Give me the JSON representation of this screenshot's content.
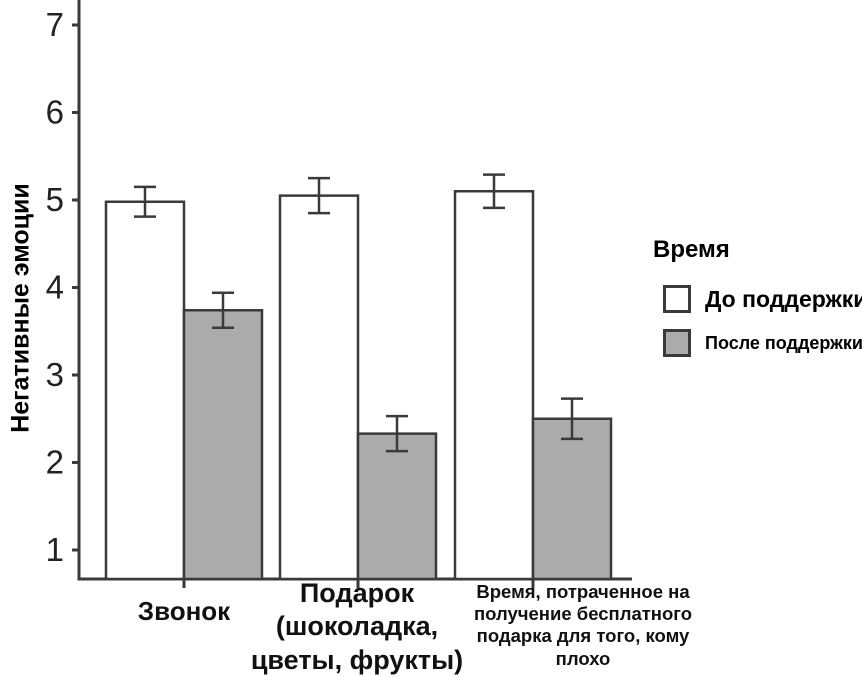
{
  "chart_data": {
    "type": "bar",
    "title": "",
    "ylabel": "Негативные эмоции",
    "xlabel": "",
    "grid": false,
    "legend_position": "right",
    "legend": {
      "title": "Время"
    },
    "categories": [
      "Звонок",
      "Подарок\n(шоколадка,\nцветы, фрукты)",
      "Время, потраченное на\nполучение бесплатного\nподарка для того, кому\nплохо"
    ],
    "yticks": [
      1,
      2,
      3,
      4,
      5,
      6,
      7
    ],
    "ylim": [
      0.67,
      7.3
    ],
    "series": [
      {
        "name": "До поддержки",
        "fill": "#ffffff",
        "values": [
          4.98,
          5.05,
          5.1
        ],
        "errors": [
          0.17,
          0.2,
          0.19
        ]
      },
      {
        "name": "После поддержки",
        "fill": "#ababab",
        "values": [
          3.74,
          2.33,
          2.5
        ],
        "errors": [
          0.2,
          0.2,
          0.23
        ]
      }
    ],
    "colors": {
      "stroke": "#3a3a3a",
      "text": "#000000"
    }
  }
}
